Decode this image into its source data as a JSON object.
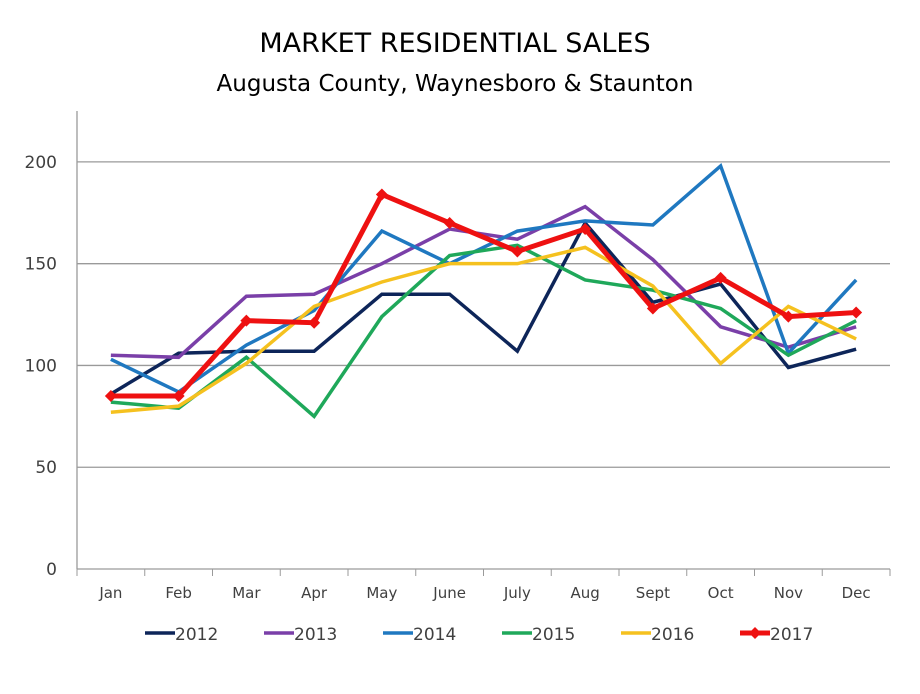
{
  "chart_data": {
    "type": "line",
    "title": "MARKET RESIDENTIAL SALES",
    "subtitle": "Augusta County, Waynesboro & Staunton",
    "xlabel": "",
    "ylabel": "",
    "categories": [
      "Jan",
      "Feb",
      "Mar",
      "Apr",
      "May",
      "June",
      "July",
      "Aug",
      "Sept",
      "Oct",
      "Nov",
      "Dec"
    ],
    "ylim": [
      0,
      225
    ],
    "yticks": [
      0,
      50,
      100,
      150,
      200
    ],
    "grid": true,
    "legend": "bottom",
    "series": [
      {
        "name": "2012",
        "color": "#0d2559",
        "marker": false,
        "values": [
          86,
          106,
          107,
          107,
          135,
          135,
          107,
          170,
          131,
          140,
          99,
          108
        ]
      },
      {
        "name": "2013",
        "color": "#7a3fa8",
        "marker": false,
        "values": [
          105,
          104,
          134,
          135,
          150,
          167,
          162,
          178,
          152,
          119,
          109,
          119
        ]
      },
      {
        "name": "2014",
        "color": "#1f78c0",
        "marker": false,
        "values": [
          103,
          87,
          110,
          127,
          166,
          150,
          166,
          171,
          169,
          198,
          106,
          142
        ]
      },
      {
        "name": "2015",
        "color": "#1fa85a",
        "marker": false,
        "values": [
          82,
          79,
          104,
          75,
          124,
          154,
          159,
          142,
          137,
          128,
          105,
          122
        ]
      },
      {
        "name": "2016",
        "color": "#f5c11f",
        "marker": false,
        "values": [
          77,
          80,
          101,
          129,
          141,
          150,
          150,
          158,
          139,
          101,
          129,
          113
        ]
      },
      {
        "name": "2017",
        "color": "#ee1111",
        "marker": true,
        "values": [
          85,
          85,
          122,
          121,
          184,
          170,
          156,
          167,
          128,
          143,
          124,
          126
        ]
      }
    ]
  }
}
